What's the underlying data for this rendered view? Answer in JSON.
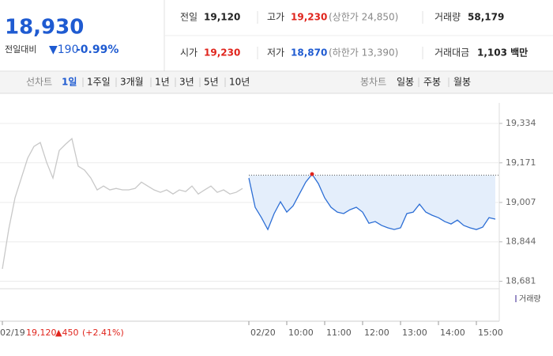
{
  "header": {
    "price": "18,930",
    "change_label": "전일대비",
    "change": "▼190",
    "change_pct": "-0.99%",
    "stats": [
      {
        "label": "전일",
        "value": "19,120"
      },
      {
        "label": "고가",
        "value": "19,230",
        "note": "(상한가 24,850)"
      },
      {
        "label": "거래량",
        "value": "58,179"
      },
      {
        "label": "시가",
        "value": "19,230"
      },
      {
        "label": "저가",
        "value": "18,870",
        "note": "(하한가 13,390)"
      },
      {
        "label": "거래대금",
        "value": "1,103 백만"
      }
    ]
  },
  "line_tabs": {
    "label": "선차트",
    "items": [
      "1일",
      "1주일",
      "3개월",
      "1년",
      "3년",
      "5년",
      "10년"
    ]
  },
  "candle_tabs": {
    "label": "봉차트",
    "items": [
      "일봉",
      "주봉",
      "월봉"
    ]
  },
  "prev_day_summary": {
    "close": "19,120",
    "change": "▲450",
    "change_pct": "(+2.41%)"
  },
  "chart_data": {
    "type": "line",
    "categories": [
      "02/19",
      null,
      null,
      null,
      null,
      null,
      null,
      null,
      null,
      null,
      null,
      null,
      null,
      null,
      null,
      null,
      null,
      null,
      null,
      null,
      null,
      null,
      null,
      null,
      null,
      null,
      null,
      null,
      null,
      null,
      null,
      null,
      null,
      null,
      null,
      null,
      null,
      null,
      null,
      "02/20",
      null,
      null,
      null,
      null,
      null,
      "10:00",
      null,
      null,
      null,
      null,
      null,
      "11:00",
      null,
      null,
      null,
      null,
      null,
      "12:00",
      null,
      null,
      null,
      null,
      null,
      "13:00",
      null,
      null,
      null,
      null,
      null,
      "14:00",
      null,
      null,
      null,
      null,
      null,
      "15:00",
      null,
      null,
      null
    ],
    "series": [
      {
        "color": "#c8c8c8",
        "values": [
          18732,
          18895,
          19026,
          19108,
          19190,
          19239,
          19255,
          19173,
          19108,
          19222,
          19248,
          19271,
          19157,
          19141,
          19108,
          19059,
          19075,
          19059,
          19065,
          19059,
          19059,
          19065,
          19091,
          19075,
          19059,
          19049,
          19059,
          19042,
          19059,
          19052,
          19075,
          19042,
          19059,
          19075,
          19049,
          19059,
          19042,
          19049,
          19065,
          null,
          null,
          null,
          null,
          null,
          null,
          null,
          null,
          null,
          null,
          null,
          null,
          null,
          null,
          null,
          null,
          null,
          null,
          null,
          null,
          null,
          null,
          null,
          null,
          null,
          null,
          null,
          null,
          null,
          null,
          null,
          null,
          null,
          null,
          null,
          null,
          null,
          null,
          null,
          null
        ]
      },
      {
        "color": "#2c6ed5",
        "values": [
          null,
          null,
          null,
          null,
          null,
          null,
          null,
          null,
          null,
          null,
          null,
          null,
          null,
          null,
          null,
          null,
          null,
          null,
          null,
          null,
          null,
          null,
          null,
          null,
          null,
          null,
          null,
          null,
          null,
          null,
          null,
          null,
          null,
          null,
          null,
          null,
          null,
          null,
          null,
          19108,
          18987,
          18944,
          18895,
          18961,
          19010,
          18967,
          18993,
          19042,
          19091,
          19124,
          19085,
          19026,
          18987,
          18967,
          18961,
          18977,
          18987,
          18967,
          18921,
          18928,
          18912,
          18902,
          18895,
          18902,
          18961,
          18967,
          19000,
          18967,
          18954,
          18944,
          18928,
          18918,
          18934,
          18912,
          18902,
          18895,
          18905,
          18944,
          18938
        ]
      }
    ],
    "prev_close": 19120,
    "ylim": [
      18650,
      19370
    ],
    "yticks": [
      {
        "value": 19334,
        "label": "19,334"
      },
      {
        "value": 19171,
        "label": "19,171"
      },
      {
        "value": 19007,
        "label": "19,007"
      },
      {
        "value": 18844,
        "label": "18,844"
      },
      {
        "value": 18681,
        "label": "18,681"
      }
    ],
    "volume_legend": "거래량"
  }
}
